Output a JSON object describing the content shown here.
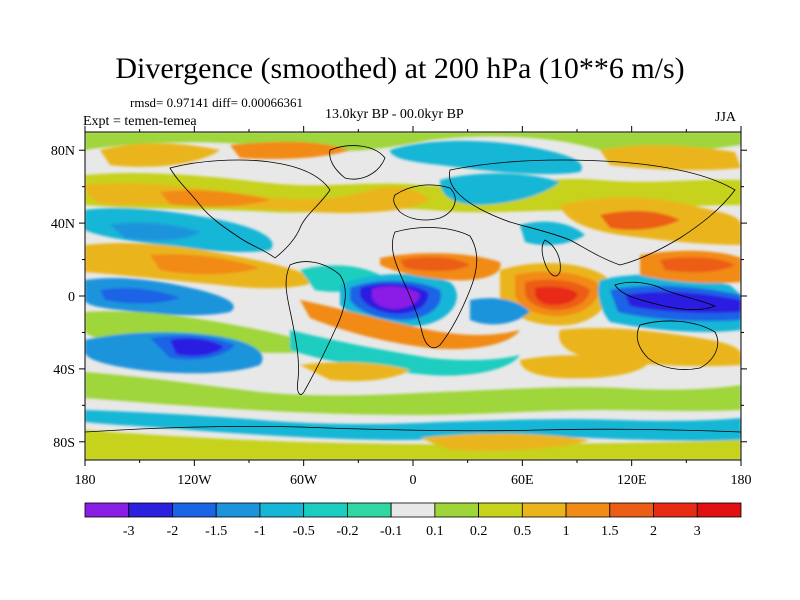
{
  "title": "Divergence (smoothed) at 200 hPa (10**6 m/s)",
  "stats": "rmsd= 0.97141  diff= 0.00066361",
  "period": "13.0kyr BP - 00.0kyr BP",
  "experiment": "Expt = temen-temea",
  "season": "JJA",
  "map": {
    "lat_labels": [
      "80N",
      "40N",
      "0",
      "40S",
      "80S"
    ],
    "lat_values": [
      80,
      40,
      0,
      -40,
      -80
    ],
    "lon_labels": [
      "180",
      "120W",
      "60W",
      "0",
      "60E",
      "120E",
      "180"
    ],
    "lon_values": [
      -180,
      -120,
      -60,
      0,
      60,
      120,
      180
    ]
  },
  "colorbar": {
    "labels": [
      "-3",
      "-2",
      "-1.5",
      "-1",
      "-0.5",
      "-0.2",
      "-0.1",
      "0.1",
      "0.2",
      "0.5",
      "1",
      "1.5",
      "2",
      "3"
    ],
    "colors": [
      "#8a1de6",
      "#2b1fe0",
      "#1a64e6",
      "#1b94dc",
      "#16b6d6",
      "#1bcdc0",
      "#2fd7a2",
      "#e8e8e8",
      "#9ed63a",
      "#c6d21c",
      "#eab51b",
      "#f28a16",
      "#ec5d16",
      "#e82c14",
      "#e01010"
    ]
  },
  "palette": {
    "neg3": "#8a1de6",
    "neg2": "#2b1fe0",
    "neg15": "#1a64e6",
    "neg1": "#1b94dc",
    "neg05": "#16b6d6",
    "neg02": "#1bcdc0",
    "neg01": "#2fd7a2",
    "zero": "#e8e8e8",
    "pos01": "#9ed63a",
    "pos02": "#c6d21c",
    "pos05": "#eab51b",
    "pos1": "#f28a16",
    "pos15": "#ec5d16",
    "pos2": "#e82c14",
    "pos3": "#e01010"
  }
}
